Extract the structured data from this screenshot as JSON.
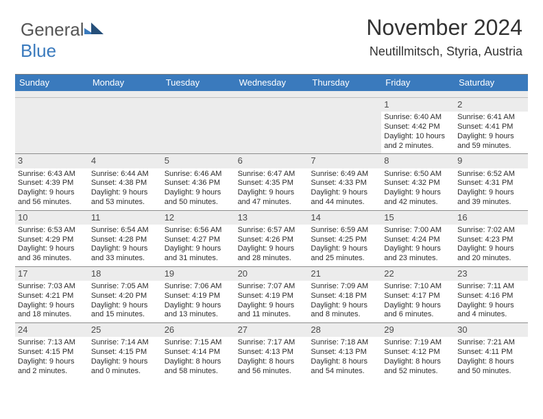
{
  "logo": {
    "text1": "General",
    "text2": "Blue"
  },
  "title": "November 2024",
  "location": "Neutillmitsch, Styria, Austria",
  "colors": {
    "header_bg": "#3a7abd",
    "header_text": "#ffffff",
    "daynum_bg": "#ececec",
    "border": "#8c8c8c"
  },
  "day_headers": [
    "Sunday",
    "Monday",
    "Tuesday",
    "Wednesday",
    "Thursday",
    "Friday",
    "Saturday"
  ],
  "weeks": [
    [
      {
        "empty": true
      },
      {
        "empty": true
      },
      {
        "empty": true
      },
      {
        "empty": true
      },
      {
        "empty": true
      },
      {
        "day": "1",
        "sunrise": "Sunrise: 6:40 AM",
        "sunset": "Sunset: 4:42 PM",
        "daylight1": "Daylight: 10 hours",
        "daylight2": "and 2 minutes."
      },
      {
        "day": "2",
        "sunrise": "Sunrise: 6:41 AM",
        "sunset": "Sunset: 4:41 PM",
        "daylight1": "Daylight: 9 hours",
        "daylight2": "and 59 minutes."
      }
    ],
    [
      {
        "day": "3",
        "sunrise": "Sunrise: 6:43 AM",
        "sunset": "Sunset: 4:39 PM",
        "daylight1": "Daylight: 9 hours",
        "daylight2": "and 56 minutes."
      },
      {
        "day": "4",
        "sunrise": "Sunrise: 6:44 AM",
        "sunset": "Sunset: 4:38 PM",
        "daylight1": "Daylight: 9 hours",
        "daylight2": "and 53 minutes."
      },
      {
        "day": "5",
        "sunrise": "Sunrise: 6:46 AM",
        "sunset": "Sunset: 4:36 PM",
        "daylight1": "Daylight: 9 hours",
        "daylight2": "and 50 minutes."
      },
      {
        "day": "6",
        "sunrise": "Sunrise: 6:47 AM",
        "sunset": "Sunset: 4:35 PM",
        "daylight1": "Daylight: 9 hours",
        "daylight2": "and 47 minutes."
      },
      {
        "day": "7",
        "sunrise": "Sunrise: 6:49 AM",
        "sunset": "Sunset: 4:33 PM",
        "daylight1": "Daylight: 9 hours",
        "daylight2": "and 44 minutes."
      },
      {
        "day": "8",
        "sunrise": "Sunrise: 6:50 AM",
        "sunset": "Sunset: 4:32 PM",
        "daylight1": "Daylight: 9 hours",
        "daylight2": "and 42 minutes."
      },
      {
        "day": "9",
        "sunrise": "Sunrise: 6:52 AM",
        "sunset": "Sunset: 4:31 PM",
        "daylight1": "Daylight: 9 hours",
        "daylight2": "and 39 minutes."
      }
    ],
    [
      {
        "day": "10",
        "sunrise": "Sunrise: 6:53 AM",
        "sunset": "Sunset: 4:29 PM",
        "daylight1": "Daylight: 9 hours",
        "daylight2": "and 36 minutes."
      },
      {
        "day": "11",
        "sunrise": "Sunrise: 6:54 AM",
        "sunset": "Sunset: 4:28 PM",
        "daylight1": "Daylight: 9 hours",
        "daylight2": "and 33 minutes."
      },
      {
        "day": "12",
        "sunrise": "Sunrise: 6:56 AM",
        "sunset": "Sunset: 4:27 PM",
        "daylight1": "Daylight: 9 hours",
        "daylight2": "and 31 minutes."
      },
      {
        "day": "13",
        "sunrise": "Sunrise: 6:57 AM",
        "sunset": "Sunset: 4:26 PM",
        "daylight1": "Daylight: 9 hours",
        "daylight2": "and 28 minutes."
      },
      {
        "day": "14",
        "sunrise": "Sunrise: 6:59 AM",
        "sunset": "Sunset: 4:25 PM",
        "daylight1": "Daylight: 9 hours",
        "daylight2": "and 25 minutes."
      },
      {
        "day": "15",
        "sunrise": "Sunrise: 7:00 AM",
        "sunset": "Sunset: 4:24 PM",
        "daylight1": "Daylight: 9 hours",
        "daylight2": "and 23 minutes."
      },
      {
        "day": "16",
        "sunrise": "Sunrise: 7:02 AM",
        "sunset": "Sunset: 4:23 PM",
        "daylight1": "Daylight: 9 hours",
        "daylight2": "and 20 minutes."
      }
    ],
    [
      {
        "day": "17",
        "sunrise": "Sunrise: 7:03 AM",
        "sunset": "Sunset: 4:21 PM",
        "daylight1": "Daylight: 9 hours",
        "daylight2": "and 18 minutes."
      },
      {
        "day": "18",
        "sunrise": "Sunrise: 7:05 AM",
        "sunset": "Sunset: 4:20 PM",
        "daylight1": "Daylight: 9 hours",
        "daylight2": "and 15 minutes."
      },
      {
        "day": "19",
        "sunrise": "Sunrise: 7:06 AM",
        "sunset": "Sunset: 4:19 PM",
        "daylight1": "Daylight: 9 hours",
        "daylight2": "and 13 minutes."
      },
      {
        "day": "20",
        "sunrise": "Sunrise: 7:07 AM",
        "sunset": "Sunset: 4:19 PM",
        "daylight1": "Daylight: 9 hours",
        "daylight2": "and 11 minutes."
      },
      {
        "day": "21",
        "sunrise": "Sunrise: 7:09 AM",
        "sunset": "Sunset: 4:18 PM",
        "daylight1": "Daylight: 9 hours",
        "daylight2": "and 8 minutes."
      },
      {
        "day": "22",
        "sunrise": "Sunrise: 7:10 AM",
        "sunset": "Sunset: 4:17 PM",
        "daylight1": "Daylight: 9 hours",
        "daylight2": "and 6 minutes."
      },
      {
        "day": "23",
        "sunrise": "Sunrise: 7:11 AM",
        "sunset": "Sunset: 4:16 PM",
        "daylight1": "Daylight: 9 hours",
        "daylight2": "and 4 minutes."
      }
    ],
    [
      {
        "day": "24",
        "sunrise": "Sunrise: 7:13 AM",
        "sunset": "Sunset: 4:15 PM",
        "daylight1": "Daylight: 9 hours",
        "daylight2": "and 2 minutes."
      },
      {
        "day": "25",
        "sunrise": "Sunrise: 7:14 AM",
        "sunset": "Sunset: 4:15 PM",
        "daylight1": "Daylight: 9 hours",
        "daylight2": "and 0 minutes."
      },
      {
        "day": "26",
        "sunrise": "Sunrise: 7:15 AM",
        "sunset": "Sunset: 4:14 PM",
        "daylight1": "Daylight: 8 hours",
        "daylight2": "and 58 minutes."
      },
      {
        "day": "27",
        "sunrise": "Sunrise: 7:17 AM",
        "sunset": "Sunset: 4:13 PM",
        "daylight1": "Daylight: 8 hours",
        "daylight2": "and 56 minutes."
      },
      {
        "day": "28",
        "sunrise": "Sunrise: 7:18 AM",
        "sunset": "Sunset: 4:13 PM",
        "daylight1": "Daylight: 8 hours",
        "daylight2": "and 54 minutes."
      },
      {
        "day": "29",
        "sunrise": "Sunrise: 7:19 AM",
        "sunset": "Sunset: 4:12 PM",
        "daylight1": "Daylight: 8 hours",
        "daylight2": "and 52 minutes."
      },
      {
        "day": "30",
        "sunrise": "Sunrise: 7:21 AM",
        "sunset": "Sunset: 4:11 PM",
        "daylight1": "Daylight: 8 hours",
        "daylight2": "and 50 minutes."
      }
    ]
  ]
}
